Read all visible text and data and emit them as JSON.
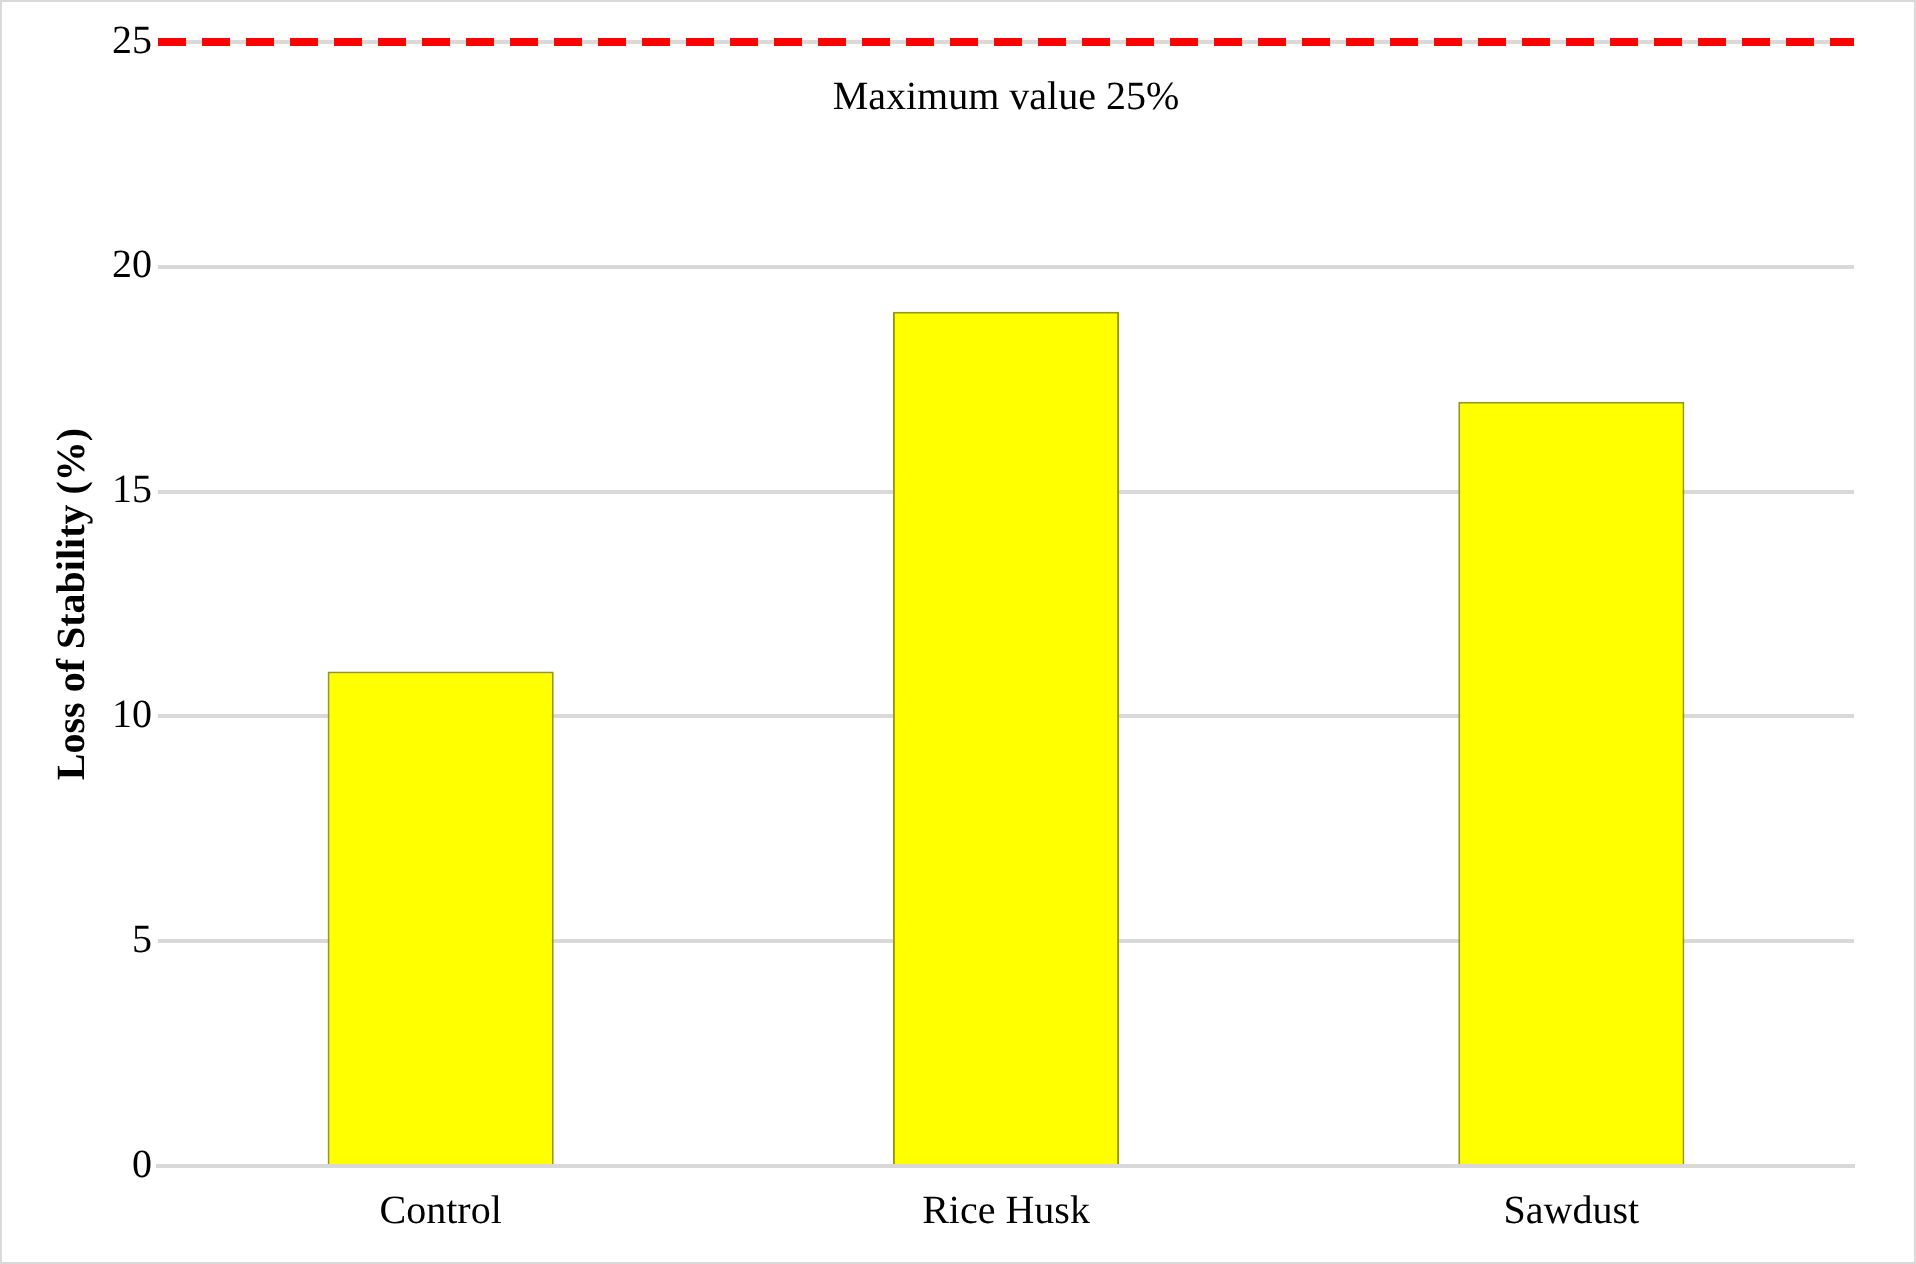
{
  "chart_data": {
    "type": "bar",
    "ylabel": "Loss of Stability (%)",
    "categories": [
      "Control",
      "Rice Husk",
      "Sawdust"
    ],
    "values": [
      11,
      19,
      17
    ],
    "color": "#ffff00",
    "ylim": [
      0,
      25
    ],
    "yticks": [
      0,
      5,
      10,
      15,
      20,
      25
    ],
    "grid": "y",
    "legend": false,
    "ref_lines": [
      {
        "axis": "y",
        "value": 25,
        "label": "Maximum value 25%",
        "color": "#ff0000",
        "line_style": "dashed"
      }
    ]
  }
}
